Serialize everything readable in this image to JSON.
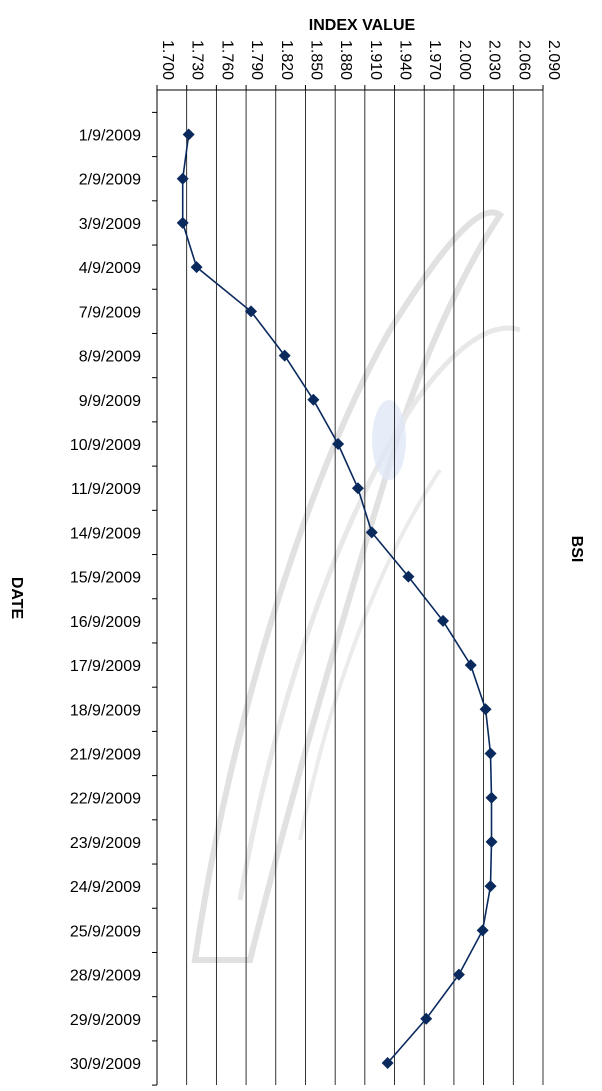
{
  "chart_data": {
    "type": "line",
    "title": "",
    "ylabel": "INDEX VALUE",
    "xlabel": "DATE",
    "series_label": "BSI",
    "orientation": "horizontal-categories-vertical",
    "value_axis": {
      "min": 1700,
      "max": 2090,
      "ticks": [
        1700,
        1730,
        1760,
        1790,
        1820,
        1850,
        1880,
        1910,
        1940,
        1970,
        2000,
        2030,
        2060,
        2090
      ],
      "tick_labels": [
        "1.700",
        "1.730",
        "1.760",
        "1.790",
        "1.820",
        "1.850",
        "1.880",
        "1.910",
        "1.940",
        "1.970",
        "2.000",
        "2.030",
        "2.060",
        "2.090"
      ],
      "position": "top",
      "grid": true
    },
    "categories": [
      "1/9/2009",
      "2/9/2009",
      "3/9/2009",
      "4/9/2009",
      "7/9/2009",
      "8/9/2009",
      "9/9/2009",
      "10/9/2009",
      "11/9/2009",
      "14/9/2009",
      "15/9/2009",
      "16/9/2009",
      "17/9/2009",
      "18/9/2009",
      "21/9/2009",
      "22/9/2009",
      "23/9/2009",
      "24/9/2009",
      "25/9/2009",
      "28/9/2009",
      "29/9/2009",
      "30/9/2009"
    ],
    "series": [
      {
        "name": "BSI",
        "values": [
          1732,
          1726,
          1726,
          1740,
          1795,
          1829,
          1858,
          1883,
          1903,
          1917,
          1954,
          1989,
          2017,
          2032,
          2037,
          2038,
          2038,
          2037,
          2029,
          2005,
          1972,
          1933
        ]
      }
    ],
    "colors": {
      "line": "#0a2a5e",
      "marker": "#0a2a5e",
      "grid": "#000000",
      "axis": "#000000"
    },
    "legend": "right"
  }
}
